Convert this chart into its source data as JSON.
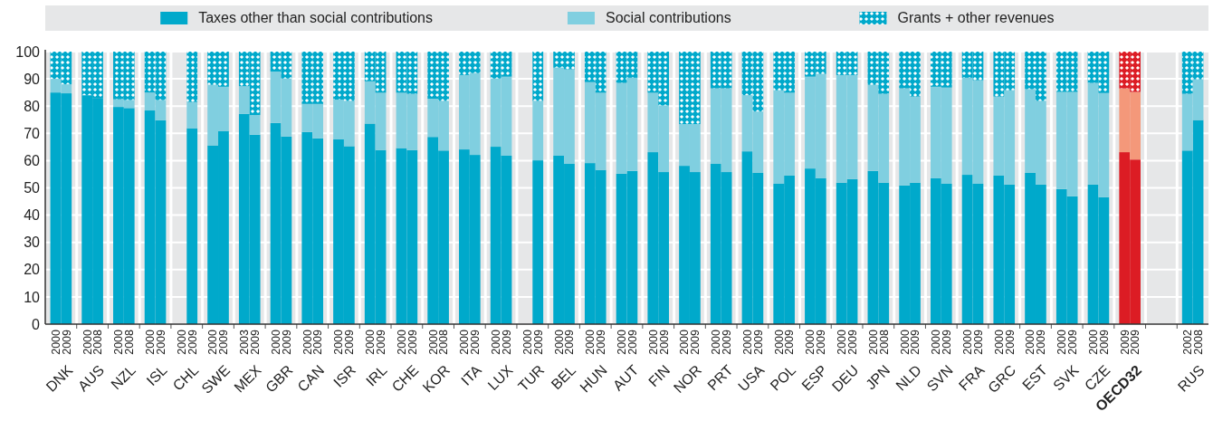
{
  "chart_data": {
    "type": "bar",
    "stacked": true,
    "grid": "y",
    "legend": "top",
    "ylim": [
      0,
      100
    ],
    "yticks": [
      0,
      10,
      20,
      30,
      40,
      50,
      60,
      70,
      80,
      90,
      100
    ],
    "categories": [
      "2000",
      "2009",
      "2000",
      "2008",
      "2000",
      "2008",
      "2000",
      "2009",
      "2000",
      "2009",
      "2000",
      "2009",
      "2003",
      "2009",
      "2000",
      "2009",
      "2000",
      "2009",
      "2000",
      "2009",
      "2000",
      "2009",
      "2000",
      "2009",
      "2000",
      "2008",
      "2000",
      "2009",
      "2000",
      "2009",
      "2000",
      "2009",
      "2000",
      "2009",
      "2000",
      "2009",
      "2000",
      "2009",
      "2000",
      "2009",
      "2000",
      "2009",
      "2000",
      "2009",
      "2000",
      "2009",
      "2000",
      "2009",
      "2000",
      "2009",
      "2000",
      "2009",
      "2000",
      "2008",
      "2000",
      "2009",
      "2000",
      "2009",
      "2000",
      "2009",
      "2000",
      "2009",
      "2000",
      "2009",
      "2000",
      "2009",
      "2000",
      "2009",
      "2009",
      "2009",
      null,
      null,
      "2002",
      "2008"
    ],
    "annotations": [
      "DNK",
      "AUS",
      "NZL",
      "ISL",
      "CHL",
      "SWE",
      "MEX",
      "GBR",
      "CAN",
      "ISR",
      "IRL",
      "CHE",
      "KOR",
      "ITA",
      "LUX",
      "TUR",
      "BEL",
      "HUN",
      "AUT",
      "FIN",
      "NOR",
      "PRT",
      "USA",
      "POL",
      "ESP",
      "DEU",
      "JPN",
      "NLD",
      "SVN",
      "FRA",
      "GRC",
      "EST",
      "SVK",
      "CZE",
      "OECD32",
      "RUS"
    ],
    "series": [
      {
        "name": "Taxes other than social contributions",
        "color": "#00a9cb",
        "colors": [
          "#00a9cb",
          "#00a9cb",
          "#00a9cb",
          "#00a9cb",
          "#00a9cb",
          "#00a9cb",
          "#00a9cb",
          "#00a9cb",
          null,
          "#00a9cb",
          "#00a9cb",
          "#00a9cb",
          "#00a9cb",
          "#00a9cb",
          "#00a9cb",
          "#00a9cb",
          "#00a9cb",
          "#00a9cb",
          "#00a9cb",
          "#00a9cb",
          "#00a9cb",
          "#00a9cb",
          "#00a9cb",
          "#00a9cb",
          "#00a9cb",
          "#00a9cb",
          "#00a9cb",
          "#00a9cb",
          "#00a9cb",
          "#00a9cb",
          null,
          "#00a9cb",
          "#00a9cb",
          "#00a9cb",
          "#00a9cb",
          "#00a9cb",
          "#00a9cb",
          "#00a9cb",
          "#00a9cb",
          "#00a9cb",
          "#00a9cb",
          "#00a9cb",
          "#00a9cb",
          "#00a9cb",
          "#00a9cb",
          "#00a9cb",
          "#00a9cb",
          "#00a9cb",
          "#00a9cb",
          "#00a9cb",
          "#00a9cb",
          "#00a9cb",
          "#00a9cb",
          "#00a9cb",
          "#00a9cb",
          "#00a9cb",
          "#00a9cb",
          "#00a9cb",
          "#00a9cb",
          "#00a9cb",
          "#00a9cb",
          "#00a9cb",
          "#00a9cb",
          "#00a9cb",
          "#00a9cb",
          "#00a9cb",
          "#00a9cb",
          "#00a9cb",
          "#dc1c24",
          "#dc1c24",
          null,
          null,
          "#00a9cb",
          "#00a9cb"
        ],
        "values": [
          85,
          84.7,
          84,
          83,
          79.7,
          79.3,
          78.4,
          74.8,
          null,
          71.9,
          65.6,
          70.9,
          77.1,
          69.5,
          73.8,
          68.8,
          70.5,
          68.2,
          67.9,
          65.3,
          73.6,
          63.9,
          64.6,
          63.9,
          68.7,
          63.7,
          64.1,
          62.1,
          65.1,
          61.8,
          null,
          60.1,
          61.8,
          58.8,
          59.1,
          56.6,
          55.2,
          56.2,
          63.1,
          55.8,
          58.1,
          55.8,
          58.8,
          55.8,
          63.4,
          55.5,
          51.5,
          54.5,
          57.1,
          53.5,
          51.9,
          53.2,
          56.2,
          51.9,
          50.9,
          51.9,
          53.5,
          51.5,
          54.8,
          51.5,
          54.5,
          51.2,
          55.5,
          51.2,
          49.6,
          46.9,
          51.2,
          46.6,
          63.1,
          60.4,
          null,
          null,
          63.7,
          74.9
        ]
      },
      {
        "name": "Social contributions",
        "color": "#80cfe0",
        "colors": [
          "#80cfe0",
          "#80cfe0",
          "#80cfe0",
          "#80cfe0",
          "#80cfe0",
          "#80cfe0",
          "#80cfe0",
          "#80cfe0",
          null,
          "#80cfe0",
          "#80cfe0",
          "#80cfe0",
          "#80cfe0",
          "#80cfe0",
          "#80cfe0",
          "#80cfe0",
          "#80cfe0",
          "#80cfe0",
          "#80cfe0",
          "#80cfe0",
          "#80cfe0",
          "#80cfe0",
          "#80cfe0",
          "#80cfe0",
          "#80cfe0",
          "#80cfe0",
          "#80cfe0",
          "#80cfe0",
          "#80cfe0",
          "#80cfe0",
          null,
          "#80cfe0",
          "#80cfe0",
          "#80cfe0",
          "#80cfe0",
          "#80cfe0",
          "#80cfe0",
          "#80cfe0",
          "#80cfe0",
          "#80cfe0",
          "#80cfe0",
          "#80cfe0",
          "#80cfe0",
          "#80cfe0",
          "#80cfe0",
          "#80cfe0",
          "#80cfe0",
          "#80cfe0",
          "#80cfe0",
          "#80cfe0",
          "#80cfe0",
          "#80cfe0",
          "#80cfe0",
          "#80cfe0",
          "#80cfe0",
          "#80cfe0",
          "#80cfe0",
          "#80cfe0",
          "#80cfe0",
          "#80cfe0",
          "#80cfe0",
          "#80cfe0",
          "#80cfe0",
          "#80cfe0",
          "#80cfe0",
          "#80cfe0",
          "#80cfe0",
          "#80cfe0",
          "#f4987a",
          "#f4987a",
          null,
          null,
          "#80cfe0",
          "#80cfe0"
        ],
        "values": [
          5,
          3.3,
          0,
          0,
          2.8,
          2.9,
          6.6,
          7.4,
          null,
          9.6,
          22.2,
          16.2,
          10.2,
          7.2,
          18.9,
          21.3,
          10.3,
          12.6,
          14.5,
          16.6,
          15.5,
          21,
          20.3,
          20.6,
          14,
          18.2,
          27.3,
          30,
          25,
          29,
          null,
          21.8,
          32.3,
          34.7,
          29.7,
          28.3,
          33.3,
          34.2,
          21.8,
          24.4,
          15.3,
          17.6,
          27.7,
          30.7,
          20.6,
          22.5,
          34.3,
          30.4,
          33.7,
          38.3,
          39.5,
          38.2,
          31.6,
          32.6,
          35.6,
          31.6,
          33.6,
          35.3,
          35.6,
          38,
          29,
          34.6,
          30.7,
          30.7,
          35.6,
          38.3,
          37.3,
          38.2,
          23.4,
          24.8,
          null,
          null,
          20.8,
          14.9
        ]
      },
      {
        "name": "Grants + other revenues",
        "color": "#00a9cb",
        "colors": [
          "#00a9cb",
          "#00a9cb",
          "#00a9cb",
          "#00a9cb",
          "#00a9cb",
          "#00a9cb",
          "#00a9cb",
          "#00a9cb",
          null,
          "#00a9cb",
          "#00a9cb",
          "#00a9cb",
          "#00a9cb",
          "#00a9cb",
          "#00a9cb",
          "#00a9cb",
          "#00a9cb",
          "#00a9cb",
          "#00a9cb",
          "#00a9cb",
          "#00a9cb",
          "#00a9cb",
          "#00a9cb",
          "#00a9cb",
          "#00a9cb",
          "#00a9cb",
          "#00a9cb",
          "#00a9cb",
          "#00a9cb",
          "#00a9cb",
          null,
          "#00a9cb",
          "#00a9cb",
          "#00a9cb",
          "#00a9cb",
          "#00a9cb",
          "#00a9cb",
          "#00a9cb",
          "#00a9cb",
          "#00a9cb",
          "#00a9cb",
          "#00a9cb",
          "#00a9cb",
          "#00a9cb",
          "#00a9cb",
          "#00a9cb",
          "#00a9cb",
          "#00a9cb",
          "#00a9cb",
          "#00a9cb",
          "#00a9cb",
          "#00a9cb",
          "#00a9cb",
          "#00a9cb",
          "#00a9cb",
          "#00a9cb",
          "#00a9cb",
          "#00a9cb",
          "#00a9cb",
          "#00a9cb",
          "#00a9cb",
          "#00a9cb",
          "#00a9cb",
          "#00a9cb",
          "#00a9cb",
          "#00a9cb",
          "#00a9cb",
          "#00a9cb",
          "#dc1c24",
          "#dc1c24",
          null,
          null,
          "#00a9cb",
          "#00a9cb"
        ],
        "values": [
          10,
          12,
          16,
          17,
          17.5,
          17.8,
          15,
          17.8,
          null,
          18.5,
          12.2,
          12.9,
          12.7,
          23.3,
          7.3,
          9.9,
          19.2,
          19.2,
          17.6,
          18.1,
          10.9,
          15.1,
          15.1,
          15.5,
          17.3,
          18.1,
          8.6,
          7.9,
          9.9,
          9.2,
          null,
          18.1,
          5.9,
          6.5,
          11.2,
          15.1,
          11.5,
          9.6,
          15.1,
          19.8,
          26.6,
          26.6,
          13.5,
          13.5,
          16,
          22,
          14.2,
          15.1,
          9.2,
          8.2,
          8.6,
          8.6,
          12.2,
          15.5,
          13.5,
          16.5,
          12.9,
          13.2,
          9.6,
          10.5,
          16.5,
          14.2,
          13.8,
          18.1,
          14.8,
          14.8,
          11.5,
          15.2,
          13.5,
          14.8,
          null,
          null,
          15.5,
          10.2
        ]
      }
    ]
  }
}
